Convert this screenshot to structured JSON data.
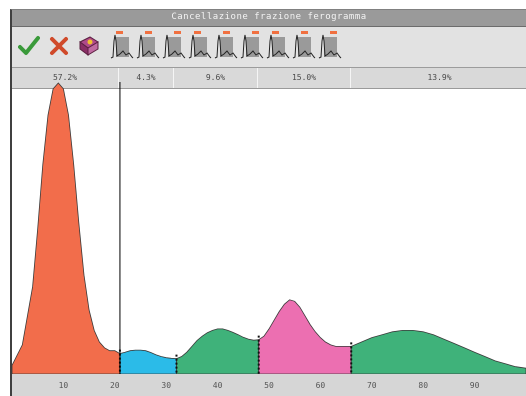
{
  "window": {
    "title": "Cancellazione frazione ferogramma"
  },
  "toolbar": {
    "confirm_icon": "check-icon",
    "cancel_icon": "x-icon",
    "help_icon": "help-book-icon",
    "fraction_thumbnails": 9
  },
  "fractions": {
    "percentages": [
      "57.2%",
      "4.3%",
      "9.6%",
      "15.0%",
      "13.9%"
    ]
  },
  "chart_data": {
    "type": "area",
    "title": "",
    "xlabel": "",
    "ylabel": "",
    "xlim": [
      0,
      100
    ],
    "ylim": [
      0,
      100
    ],
    "x_ticks": [
      "10",
      "20",
      "30",
      "40",
      "50",
      "60",
      "70",
      "80",
      "90"
    ],
    "x_tick_values": [
      10,
      20,
      30,
      40,
      50,
      60,
      70,
      80,
      90
    ],
    "grid": false,
    "cursor_x": 21,
    "fraction_boundaries": [
      21,
      32,
      48,
      66
    ],
    "series": [
      {
        "color": "#f26d4b",
        "x": [
          0,
          2,
          4,
          5,
          6,
          7,
          8,
          9,
          10,
          11,
          12,
          13,
          14,
          15,
          16,
          17,
          18,
          19,
          20,
          21
        ],
        "y": [
          3,
          10,
          30,
          50,
          72,
          89,
          98,
          100,
          98,
          89,
          72,
          52,
          34,
          22,
          15,
          11,
          9,
          8,
          8,
          7
        ]
      },
      {
        "color": "#2bbbe8",
        "x": [
          21,
          22,
          23,
          24,
          25,
          26,
          27,
          28,
          29,
          30,
          31,
          32
        ],
        "y": [
          7,
          7.5,
          8,
          8.2,
          8.2,
          8,
          7.4,
          6.6,
          6,
          5.6,
          5.4,
          5.3
        ]
      },
      {
        "color": "#3fb27a",
        "x": [
          32,
          33,
          34,
          35,
          36,
          37,
          38,
          39,
          40,
          41,
          42,
          43,
          44,
          45,
          46,
          47,
          48
        ],
        "y": [
          5.3,
          6,
          7.5,
          9.5,
          11.5,
          13,
          14.2,
          15,
          15.5,
          15.5,
          15,
          14.3,
          13.5,
          12.6,
          12,
          11.6,
          11.8
        ]
      },
      {
        "color": "#ec6fb1",
        "x": [
          48,
          49,
          50,
          51,
          52,
          53,
          54,
          55,
          56,
          57,
          58,
          59,
          60,
          61,
          62,
          63,
          64,
          65,
          66
        ],
        "y": [
          11.8,
          13,
          15.5,
          18.5,
          21.5,
          24,
          25.5,
          25,
          23,
          20,
          17,
          14.5,
          12.5,
          11,
          10,
          9.5,
          9.5,
          9.5,
          9.5
        ]
      },
      {
        "color": "#3fb27a",
        "x": [
          66,
          68,
          70,
          72,
          74,
          76,
          78,
          80,
          82,
          84,
          86,
          88,
          90,
          92,
          94,
          96,
          98,
          100
        ],
        "y": [
          9.5,
          11,
          12.5,
          13.5,
          14.5,
          15,
          15,
          14.5,
          13.5,
          12,
          10.5,
          9,
          7.5,
          6,
          4.5,
          3.5,
          2.5,
          2
        ]
      }
    ]
  }
}
